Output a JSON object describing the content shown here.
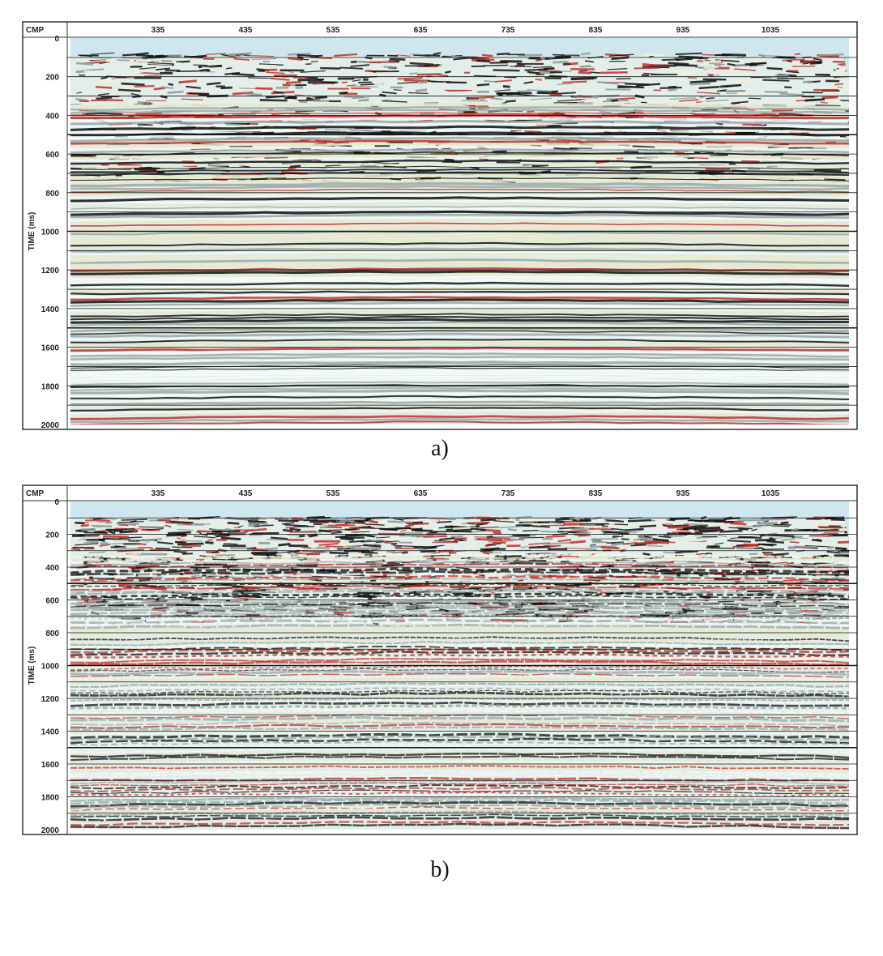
{
  "panels": [
    {
      "x_label": "CMP",
      "y_label": "TIME (ms)",
      "xticks": [
        335,
        435,
        535,
        635,
        735,
        835,
        935,
        1035
      ],
      "yticks": [
        0,
        200,
        400,
        600,
        800,
        1000,
        1200,
        1400,
        1600,
        1800,
        2000
      ],
      "caption": "a)"
    },
    {
      "x_label": "CMP",
      "y_label": "TIME (ms)",
      "xticks": [
        335,
        435,
        535,
        635,
        735,
        835,
        935,
        1035
      ],
      "yticks": [
        0,
        200,
        400,
        600,
        800,
        1000,
        1200,
        1400,
        1600,
        1800,
        2000
      ],
      "caption": "b)"
    }
  ]
}
